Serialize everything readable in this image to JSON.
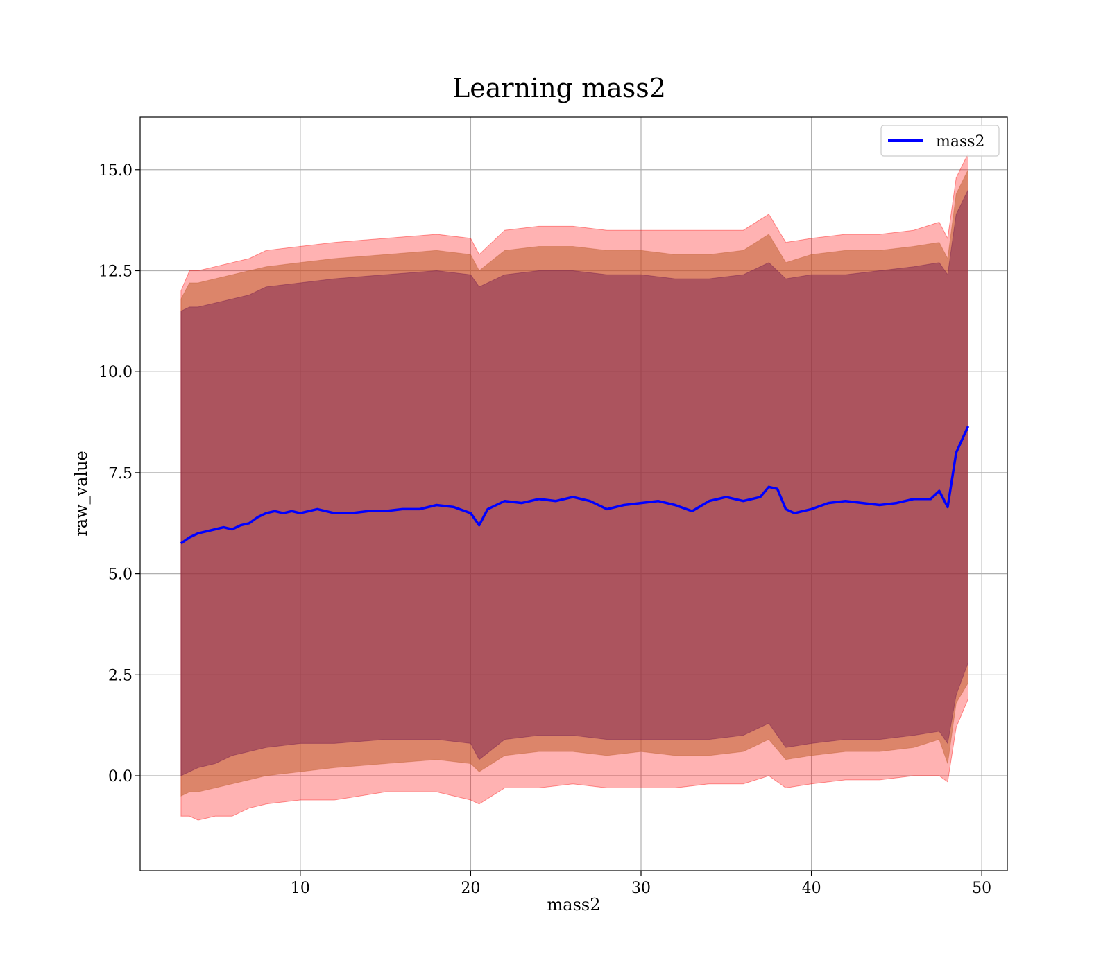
{
  "chart_data": {
    "type": "line",
    "title": "Learning mass2",
    "xlabel": "mass2",
    "ylabel": "raw_value",
    "xlim": [
      0.6,
      51.5
    ],
    "ylim": [
      -2.35,
      16.3
    ],
    "grid": true,
    "legend_position": "top-right",
    "x_ticks": [
      10,
      20,
      30,
      40,
      50
    ],
    "x_tick_labels": [
      "10",
      "20",
      "30",
      "40",
      "50"
    ],
    "y_ticks": [
      0.0,
      2.5,
      5.0,
      7.5,
      10.0,
      12.5,
      15.0
    ],
    "y_tick_labels": [
      "0.0",
      "2.5",
      "5.0",
      "7.5",
      "10.0",
      "12.5",
      "15.0"
    ],
    "colors": {
      "line": "#0000ff",
      "band_outer": "#ff0000",
      "band_middle": "#c06030",
      "band_inner": "#701850"
    },
    "series": [
      {
        "name": "mass2",
        "x": [
          3.0,
          3.5,
          4.0,
          4.5,
          5.0,
          5.5,
          6.0,
          6.5,
          7.0,
          7.5,
          8.0,
          8.5,
          9.0,
          9.5,
          10.0,
          11.0,
          12.0,
          13.0,
          14.0,
          15.0,
          16.0,
          17.0,
          18.0,
          19.0,
          20.0,
          20.5,
          21.0,
          22.0,
          23.0,
          24.0,
          25.0,
          26.0,
          27.0,
          28.0,
          29.0,
          30.0,
          31.0,
          32.0,
          33.0,
          34.0,
          35.0,
          36.0,
          37.0,
          37.5,
          38.0,
          38.5,
          39.0,
          40.0,
          41.0,
          42.0,
          43.0,
          44.0,
          45.0,
          46.0,
          47.0,
          47.5,
          48.0,
          48.5,
          49.2
        ],
        "y": [
          5.75,
          5.9,
          6.0,
          6.05,
          6.1,
          6.15,
          6.1,
          6.2,
          6.25,
          6.4,
          6.5,
          6.55,
          6.5,
          6.55,
          6.5,
          6.6,
          6.5,
          6.5,
          6.55,
          6.55,
          6.6,
          6.6,
          6.7,
          6.65,
          6.5,
          6.2,
          6.6,
          6.8,
          6.75,
          6.85,
          6.8,
          6.9,
          6.8,
          6.6,
          6.7,
          6.75,
          6.8,
          6.7,
          6.55,
          6.8,
          6.9,
          6.8,
          6.9,
          7.15,
          7.1,
          6.6,
          6.5,
          6.6,
          6.75,
          6.8,
          6.75,
          6.7,
          6.75,
          6.85,
          6.85,
          7.05,
          6.65,
          8.0,
          8.65
        ]
      }
    ],
    "bands": [
      {
        "name": "outer",
        "x": [
          3.0,
          3.5,
          4.0,
          5.0,
          6.0,
          7.0,
          8.0,
          10.0,
          12.0,
          15.0,
          18.0,
          20.0,
          20.5,
          22.0,
          24.0,
          26.0,
          28.0,
          30.0,
          32.0,
          34.0,
          36.0,
          37.5,
          38.5,
          40.0,
          42.0,
          44.0,
          46.0,
          47.5,
          48.0,
          48.5,
          49.2
        ],
        "lower": [
          -1.0,
          -1.0,
          -1.1,
          -1.0,
          -1.0,
          -0.8,
          -0.7,
          -0.6,
          -0.6,
          -0.4,
          -0.4,
          -0.6,
          -0.7,
          -0.3,
          -0.3,
          -0.2,
          -0.3,
          -0.3,
          -0.3,
          -0.2,
          -0.2,
          0.0,
          -0.3,
          -0.2,
          -0.1,
          -0.1,
          0.0,
          0.0,
          -0.15,
          1.2,
          1.9
        ],
        "upper": [
          12.0,
          12.5,
          12.5,
          12.6,
          12.7,
          12.8,
          13.0,
          13.1,
          13.2,
          13.3,
          13.4,
          13.3,
          12.9,
          13.5,
          13.6,
          13.6,
          13.5,
          13.5,
          13.5,
          13.5,
          13.5,
          13.9,
          13.2,
          13.3,
          13.4,
          13.4,
          13.5,
          13.7,
          13.3,
          14.8,
          15.4
        ]
      },
      {
        "name": "middle",
        "x": [
          3.0,
          3.5,
          4.0,
          5.0,
          6.0,
          7.0,
          8.0,
          10.0,
          12.0,
          15.0,
          18.0,
          20.0,
          20.5,
          22.0,
          24.0,
          26.0,
          28.0,
          30.0,
          32.0,
          34.0,
          36.0,
          37.5,
          38.5,
          40.0,
          42.0,
          44.0,
          46.0,
          47.5,
          48.0,
          48.5,
          49.2
        ],
        "lower": [
          -0.5,
          -0.4,
          -0.4,
          -0.3,
          -0.2,
          -0.1,
          0.0,
          0.1,
          0.2,
          0.3,
          0.4,
          0.3,
          0.1,
          0.5,
          0.6,
          0.6,
          0.5,
          0.6,
          0.5,
          0.5,
          0.6,
          0.9,
          0.4,
          0.5,
          0.6,
          0.6,
          0.7,
          0.9,
          0.3,
          1.8,
          2.3
        ],
        "upper": [
          11.8,
          12.2,
          12.2,
          12.3,
          12.4,
          12.5,
          12.6,
          12.7,
          12.8,
          12.9,
          13.0,
          12.9,
          12.5,
          13.0,
          13.1,
          13.1,
          13.0,
          13.0,
          12.9,
          12.9,
          13.0,
          13.4,
          12.7,
          12.9,
          13.0,
          13.0,
          13.1,
          13.2,
          12.8,
          14.4,
          15.0
        ]
      },
      {
        "name": "inner",
        "x": [
          3.0,
          3.5,
          4.0,
          5.0,
          6.0,
          7.0,
          8.0,
          10.0,
          12.0,
          15.0,
          18.0,
          20.0,
          20.5,
          22.0,
          24.0,
          26.0,
          28.0,
          30.0,
          32.0,
          34.0,
          36.0,
          37.5,
          38.5,
          40.0,
          42.0,
          44.0,
          46.0,
          47.5,
          48.0,
          48.5,
          49.2
        ],
        "lower": [
          0.0,
          0.1,
          0.2,
          0.3,
          0.5,
          0.6,
          0.7,
          0.8,
          0.8,
          0.9,
          0.9,
          0.8,
          0.4,
          0.9,
          1.0,
          1.0,
          0.9,
          0.9,
          0.9,
          0.9,
          1.0,
          1.3,
          0.7,
          0.8,
          0.9,
          0.9,
          1.0,
          1.1,
          0.8,
          2.0,
          2.8
        ],
        "upper": [
          11.5,
          11.6,
          11.6,
          11.7,
          11.8,
          11.9,
          12.1,
          12.2,
          12.3,
          12.4,
          12.5,
          12.4,
          12.1,
          12.4,
          12.5,
          12.5,
          12.4,
          12.4,
          12.3,
          12.3,
          12.4,
          12.7,
          12.3,
          12.4,
          12.4,
          12.5,
          12.6,
          12.7,
          12.4,
          13.9,
          14.5
        ]
      }
    ]
  }
}
